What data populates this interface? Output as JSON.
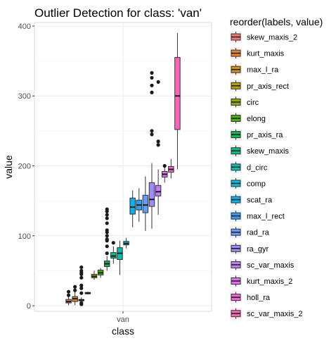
{
  "chart_data": {
    "type": "boxplot",
    "title": "Outlier Detection for class: 'van'",
    "xlabel": "class",
    "ylabel": "value",
    "categories": [
      "van"
    ],
    "ylim": [
      -8,
      405
    ],
    "yticks": [
      0,
      100,
      200,
      300,
      400
    ],
    "grid": true,
    "legend": {
      "title": "reorder(labels, value)",
      "placement": "right"
    },
    "series": [
      {
        "name": "skew_maxis_2",
        "color": "#F8766D",
        "q1": 4,
        "median": 6,
        "q3": 9,
        "min": 1,
        "max": 13,
        "outliers": [
          15,
          20
        ]
      },
      {
        "name": "kurt_maxis",
        "color": "#E7851E",
        "q1": 6,
        "median": 10,
        "q3": 13,
        "min": 1,
        "max": 20,
        "outliers": [
          22,
          27
        ]
      },
      {
        "name": "max_l_ra",
        "color": "#D09400",
        "q1": 7,
        "median": 8,
        "q3": 9,
        "min": 2,
        "max": 12,
        "outliers": [
          2,
          4,
          18,
          25,
          29,
          40,
          45,
          47,
          50,
          55
        ]
      },
      {
        "name": "pr_axis_rect",
        "color": "#B2A100",
        "q1": 17,
        "median": 18,
        "q3": 19,
        "min": 16,
        "max": 20,
        "outliers": []
      },
      {
        "name": "circ",
        "color": "#89AC00",
        "q1": 40,
        "median": 42,
        "q3": 45,
        "min": 37,
        "max": 50,
        "outliers": []
      },
      {
        "name": "elong",
        "color": "#45B500",
        "q1": 44,
        "median": 47,
        "q3": 51,
        "min": 40,
        "max": 54,
        "outliers": []
      },
      {
        "name": "pr_axis_ra",
        "color": "#00BC51",
        "q1": 56,
        "median": 60,
        "q3": 64,
        "min": 50,
        "max": 71,
        "outliers": [
          75,
          85,
          93,
          95,
          100,
          105,
          108,
          118,
          125,
          130,
          135,
          138
        ]
      },
      {
        "name": "skew_maxis",
        "color": "#00C087",
        "q1": 68,
        "median": 71,
        "q3": 76,
        "min": 60,
        "max": 85,
        "outliers": [
          90
        ]
      },
      {
        "name": "d_circ",
        "color": "#00C0B2",
        "q1": 66,
        "median": 75,
        "q3": 83,
        "min": 44,
        "max": 93,
        "outliers": []
      },
      {
        "name": "comp",
        "color": "#00BCD6",
        "q1": 87,
        "median": 89,
        "q3": 92,
        "min": 82,
        "max": 97,
        "outliers": []
      },
      {
        "name": "scat_ra",
        "color": "#00B3F2",
        "q1": 131,
        "median": 141,
        "q3": 154,
        "min": 112,
        "max": 165,
        "outliers": []
      },
      {
        "name": "max_l_rect",
        "color": "#29A3FF",
        "q1": 137,
        "median": 144,
        "q3": 151,
        "min": 120,
        "max": 168,
        "outliers": []
      },
      {
        "name": "rad_ra",
        "color": "#619CFF",
        "q1": 133,
        "median": 144,
        "q3": 158,
        "min": 107,
        "max": 185,
        "outliers": []
      },
      {
        "name": "ra_gyr",
        "color": "#9C8DFF",
        "q1": 142,
        "median": 152,
        "q3": 176,
        "min": 110,
        "max": 204,
        "outliers": [
          245,
          250,
          305,
          315,
          326,
          333
        ]
      },
      {
        "name": "sc_var_maxis",
        "color": "#C77CFF",
        "q1": 157,
        "median": 163,
        "q3": 172,
        "min": 130,
        "max": 195,
        "outliers": [
          230,
          235,
          320
        ]
      },
      {
        "name": "kurt_maxis_2",
        "color": "#E76BF3",
        "q1": 184,
        "median": 188,
        "q3": 192,
        "min": 176,
        "max": 199,
        "outliers": [
          200
        ]
      },
      {
        "name": "holl_ra",
        "color": "#FA62DB",
        "q1": 191,
        "median": 195,
        "q3": 199,
        "min": 182,
        "max": 210,
        "outliers": []
      },
      {
        "name": "sc_var_maxis_2",
        "color": "#FF62BC",
        "q1": 252,
        "median": 300,
        "q3": 355,
        "min": 195,
        "max": 390,
        "outliers": []
      }
    ]
  }
}
